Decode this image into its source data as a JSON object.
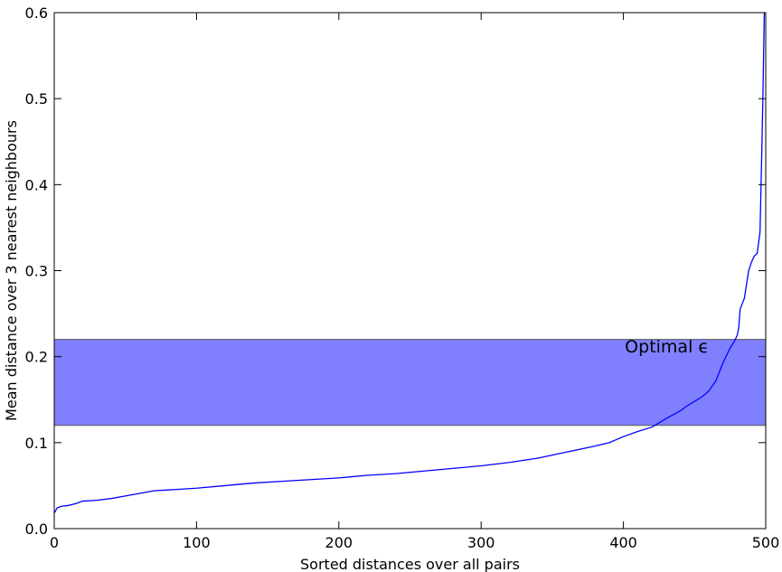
{
  "chart_data": {
    "type": "line",
    "title": "",
    "xlabel": "Sorted distances over all pairs",
    "ylabel": "Mean distance over 3 nearest neighbours",
    "xlim": [
      0,
      500
    ],
    "ylim": [
      0.0,
      0.6
    ],
    "xticks": [
      0,
      100,
      200,
      300,
      400,
      500
    ],
    "xtick_labels": [
      "0",
      "100",
      "200",
      "300",
      "400",
      "500"
    ],
    "yticks": [
      0.0,
      0.1,
      0.2,
      0.3,
      0.4,
      0.5,
      0.6
    ],
    "ytick_labels": [
      "0.0",
      "0.1",
      "0.2",
      "0.3",
      "0.4",
      "0.5",
      "0.6"
    ],
    "grid": false,
    "series": [
      {
        "color": "#0000ff",
        "x": [
          0,
          2,
          5,
          10,
          15,
          20,
          30,
          40,
          50,
          60,
          70,
          80,
          90,
          100,
          120,
          140,
          160,
          180,
          200,
          220,
          240,
          260,
          280,
          300,
          320,
          340,
          360,
          380,
          390,
          400,
          410,
          420,
          430,
          440,
          445,
          450,
          455,
          460,
          465,
          470,
          475,
          478,
          480,
          481,
          482,
          485,
          488,
          490,
          492,
          494,
          496,
          497,
          498,
          499,
          500
        ],
        "y": [
          0.018,
          0.024,
          0.026,
          0.027,
          0.029,
          0.032,
          0.033,
          0.035,
          0.038,
          0.041,
          0.044,
          0.045,
          0.046,
          0.047,
          0.05,
          0.053,
          0.055,
          0.057,
          0.059,
          0.062,
          0.064,
          0.067,
          0.07,
          0.073,
          0.077,
          0.082,
          0.089,
          0.096,
          0.1,
          0.107,
          0.113,
          0.118,
          0.128,
          0.137,
          0.143,
          0.148,
          0.153,
          0.16,
          0.172,
          0.193,
          0.21,
          0.218,
          0.225,
          0.233,
          0.255,
          0.268,
          0.3,
          0.31,
          0.317,
          0.32,
          0.345,
          0.42,
          0.5,
          0.6,
          0.62
        ]
      }
    ],
    "band": {
      "y0": 0.12,
      "y1": 0.22,
      "color": "#8080ff",
      "edge_color": "#555555"
    },
    "annotation": {
      "text": "Optimal ϵ",
      "x": 401,
      "y": 0.205
    }
  }
}
